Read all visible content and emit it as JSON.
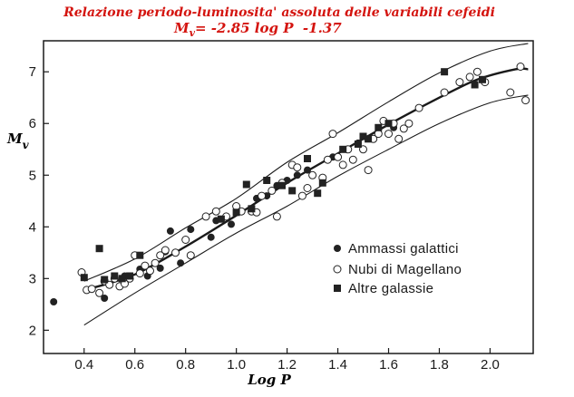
{
  "chart_data": {
    "type": "scatter",
    "title": "Relazione periodo-luminosita' assoluta delle variabili cefeidi",
    "subtitle": {
      "lhs": "M",
      "sub": "v",
      "rhs": "= -2.85 log P  -1.37"
    },
    "xlabel": "Log P",
    "ylabel": {
      "main": "M",
      "sub": "v"
    },
    "xlim": [
      0.24,
      2.17
    ],
    "ylim": [
      1.55,
      7.6
    ],
    "x_ticks": [
      0.4,
      0.6,
      0.8,
      1.0,
      1.2,
      1.4,
      1.6,
      1.8,
      2.0
    ],
    "x_tick_labels": [
      "0.4",
      "0.6",
      "0.8",
      "1.0",
      "1.2",
      "1.4",
      "1.6",
      "1.8",
      "2.0"
    ],
    "y_ticks": [
      2,
      3,
      4,
      5,
      6,
      7
    ],
    "y_tick_labels": [
      "2",
      "3",
      "4",
      "5",
      "6",
      "7"
    ],
    "grid": false,
    "legend_position": "bottom-right",
    "series": [
      {
        "name": "Ammassi galattici",
        "marker": "filled-circle",
        "color": "#222222",
        "points": [
          [
            0.28,
            2.55
          ],
          [
            0.48,
            2.62
          ],
          [
            0.56,
            3.05
          ],
          [
            0.62,
            3.18
          ],
          [
            0.65,
            3.05
          ],
          [
            0.7,
            3.2
          ],
          [
            0.72,
            3.52
          ],
          [
            0.74,
            3.92
          ],
          [
            0.78,
            3.3
          ],
          [
            0.82,
            3.95
          ],
          [
            0.9,
            3.8
          ],
          [
            0.92,
            4.12
          ],
          [
            0.98,
            4.05
          ],
          [
            1.08,
            4.55
          ],
          [
            1.12,
            4.6
          ],
          [
            1.16,
            4.8
          ],
          [
            1.2,
            4.9
          ],
          [
            1.24,
            5.0
          ],
          [
            1.28,
            5.1
          ],
          [
            1.38,
            5.35
          ],
          [
            1.48,
            5.62
          ],
          [
            1.62,
            5.92
          ]
        ]
      },
      {
        "name": "Nubi di Magellano",
        "marker": "open-circle",
        "color": "#222222",
        "points": [
          [
            0.39,
            3.12
          ],
          [
            0.41,
            2.78
          ],
          [
            0.43,
            2.8
          ],
          [
            0.46,
            2.72
          ],
          [
            0.48,
            2.95
          ],
          [
            0.5,
            2.88
          ],
          [
            0.52,
            3.0
          ],
          [
            0.54,
            2.85
          ],
          [
            0.56,
            2.9
          ],
          [
            0.58,
            3.0
          ],
          [
            0.6,
            3.45
          ],
          [
            0.62,
            3.1
          ],
          [
            0.64,
            3.25
          ],
          [
            0.66,
            3.15
          ],
          [
            0.68,
            3.3
          ],
          [
            0.7,
            3.45
          ],
          [
            0.72,
            3.55
          ],
          [
            0.76,
            3.5
          ],
          [
            0.8,
            3.75
          ],
          [
            0.82,
            3.45
          ],
          [
            0.88,
            4.2
          ],
          [
            0.92,
            4.3
          ],
          [
            0.96,
            4.2
          ],
          [
            1.0,
            4.4
          ],
          [
            1.02,
            4.3
          ],
          [
            1.06,
            4.3
          ],
          [
            1.08,
            4.28
          ],
          [
            1.1,
            4.6
          ],
          [
            1.14,
            4.7
          ],
          [
            1.16,
            4.2
          ],
          [
            1.18,
            4.85
          ],
          [
            1.22,
            5.2
          ],
          [
            1.24,
            5.15
          ],
          [
            1.26,
            4.6
          ],
          [
            1.28,
            4.75
          ],
          [
            1.3,
            5.0
          ],
          [
            1.34,
            4.95
          ],
          [
            1.36,
            5.3
          ],
          [
            1.38,
            5.8
          ],
          [
            1.4,
            5.35
          ],
          [
            1.42,
            5.2
          ],
          [
            1.44,
            5.5
          ],
          [
            1.46,
            5.3
          ],
          [
            1.5,
            5.5
          ],
          [
            1.52,
            5.1
          ],
          [
            1.54,
            5.7
          ],
          [
            1.56,
            5.8
          ],
          [
            1.58,
            6.05
          ],
          [
            1.6,
            5.8
          ],
          [
            1.62,
            6.0
          ],
          [
            1.64,
            5.7
          ],
          [
            1.66,
            5.9
          ],
          [
            1.68,
            6.0
          ],
          [
            1.72,
            6.3
          ],
          [
            1.82,
            6.6
          ],
          [
            1.88,
            6.8
          ],
          [
            1.92,
            6.9
          ],
          [
            1.95,
            7.0
          ],
          [
            1.98,
            6.8
          ],
          [
            2.08,
            6.6
          ],
          [
            2.12,
            7.1
          ],
          [
            2.14,
            6.45
          ]
        ]
      },
      {
        "name": "Altre galassie",
        "marker": "filled-square",
        "color": "#222222",
        "points": [
          [
            0.4,
            3.02
          ],
          [
            0.46,
            3.58
          ],
          [
            0.48,
            2.98
          ],
          [
            0.52,
            3.05
          ],
          [
            0.55,
            3.0
          ],
          [
            0.58,
            3.05
          ],
          [
            0.62,
            3.45
          ],
          [
            0.94,
            4.15
          ],
          [
            1.0,
            4.28
          ],
          [
            1.04,
            4.82
          ],
          [
            1.06,
            4.35
          ],
          [
            1.12,
            4.9
          ],
          [
            1.18,
            4.8
          ],
          [
            1.22,
            4.7
          ],
          [
            1.28,
            5.32
          ],
          [
            1.32,
            4.65
          ],
          [
            1.34,
            4.85
          ],
          [
            1.42,
            5.5
          ],
          [
            1.48,
            5.6
          ],
          [
            1.5,
            5.75
          ],
          [
            1.52,
            5.7
          ],
          [
            1.56,
            5.92
          ],
          [
            1.6,
            6.0
          ],
          [
            1.82,
            7.0
          ],
          [
            1.94,
            6.75
          ],
          [
            1.97,
            6.85
          ]
        ]
      }
    ],
    "curves": [
      {
        "name": "mean-relation",
        "style": "thick",
        "x": [
          0.42,
          0.6,
          0.8,
          1.0,
          1.2,
          1.4,
          1.6,
          1.8,
          1.95,
          2.1,
          2.15
        ],
        "y": [
          2.8,
          3.08,
          3.62,
          4.22,
          4.85,
          5.42,
          5.98,
          6.5,
          6.85,
          7.05,
          7.05
        ]
      },
      {
        "name": "upper-envelope",
        "style": "thin",
        "x": [
          0.4,
          0.6,
          0.8,
          1.0,
          1.2,
          1.4,
          1.6,
          1.8,
          2.0,
          2.15
        ],
        "y": [
          2.95,
          3.38,
          3.98,
          4.55,
          5.25,
          5.82,
          6.42,
          6.98,
          7.4,
          7.55
        ]
      },
      {
        "name": "lower-envelope",
        "style": "thin",
        "x": [
          0.4,
          0.6,
          0.8,
          1.0,
          1.2,
          1.4,
          1.6,
          1.8,
          2.0,
          2.15
        ],
        "y": [
          2.1,
          2.72,
          3.3,
          3.88,
          4.4,
          4.98,
          5.5,
          6.0,
          6.4,
          6.55
        ]
      }
    ]
  }
}
